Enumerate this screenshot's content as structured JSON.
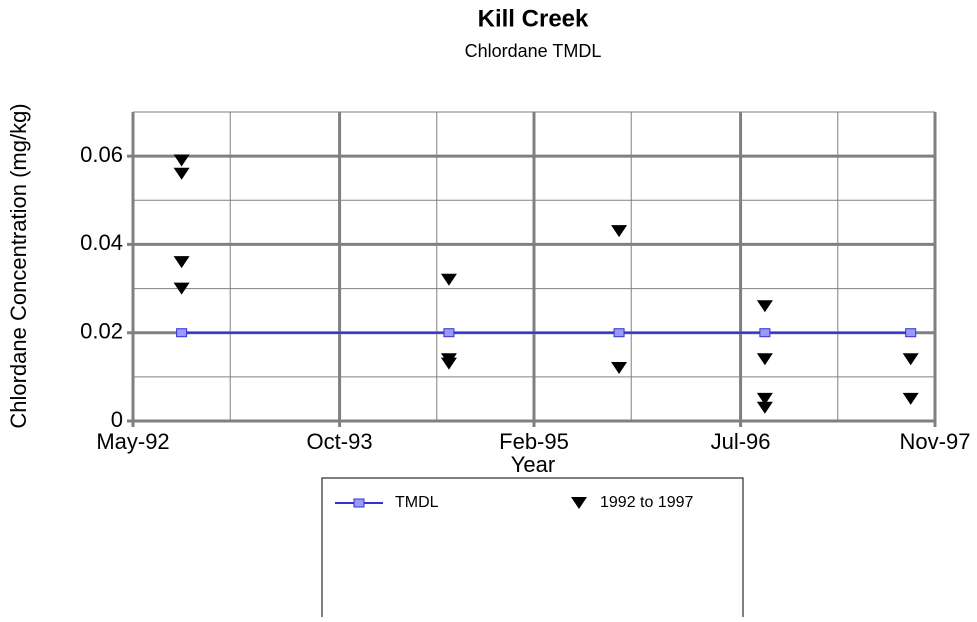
{
  "chart_data": {
    "type": "scatter",
    "title": "Kill Creek",
    "subtitle": "Chlordane TMDL",
    "x_label": "Year",
    "y_label": "Chlordane Concentration (mg/kg)",
    "xlim": [
      "1992-05",
      "1997-11"
    ],
    "xticks": [
      {
        "value": "1992-05",
        "label": "May-92"
      },
      {
        "value": "1993-10",
        "label": "Oct-93"
      },
      {
        "value": "1995-02",
        "label": "Feb-95"
      },
      {
        "value": "1996-07",
        "label": "Jul-96"
      },
      {
        "value": "1997-11",
        "label": "Nov-97"
      }
    ],
    "xminorticks": [
      "1993-01",
      "1994-06",
      "1995-10",
      "1997-03"
    ],
    "ylim": [
      0,
      0.07
    ],
    "yticks": [
      0,
      0.02,
      0.04,
      0.06
    ],
    "yminorticks": [
      0.01,
      0.03,
      0.05,
      0.07
    ],
    "grid": true,
    "legend": "bottom",
    "series": [
      {
        "name": "TMDL",
        "color": "#3333cc",
        "marker": "square",
        "x": [
          "1992-09",
          "1994-07",
          "1995-09",
          "1996-09",
          "1997-09"
        ],
        "values": [
          0.02,
          0.02,
          0.02,
          0.02,
          0.02
        ]
      },
      {
        "name": "1992 to 1997",
        "color": "#000000",
        "marker": "triangle-down",
        "x": [
          "1992-09",
          "1992-09",
          "1992-09",
          "1992-09",
          "1994-07",
          "1994-07",
          "1994-07",
          "1995-09",
          "1995-09",
          "1996-09",
          "1996-09",
          "1996-09",
          "1996-09",
          "1997-09",
          "1997-09"
        ],
        "values": [
          0.059,
          0.056,
          0.036,
          0.03,
          0.032,
          0.014,
          0.013,
          0.043,
          0.012,
          0.026,
          0.014,
          0.005,
          0.003,
          0.014,
          0.005
        ]
      }
    ]
  }
}
